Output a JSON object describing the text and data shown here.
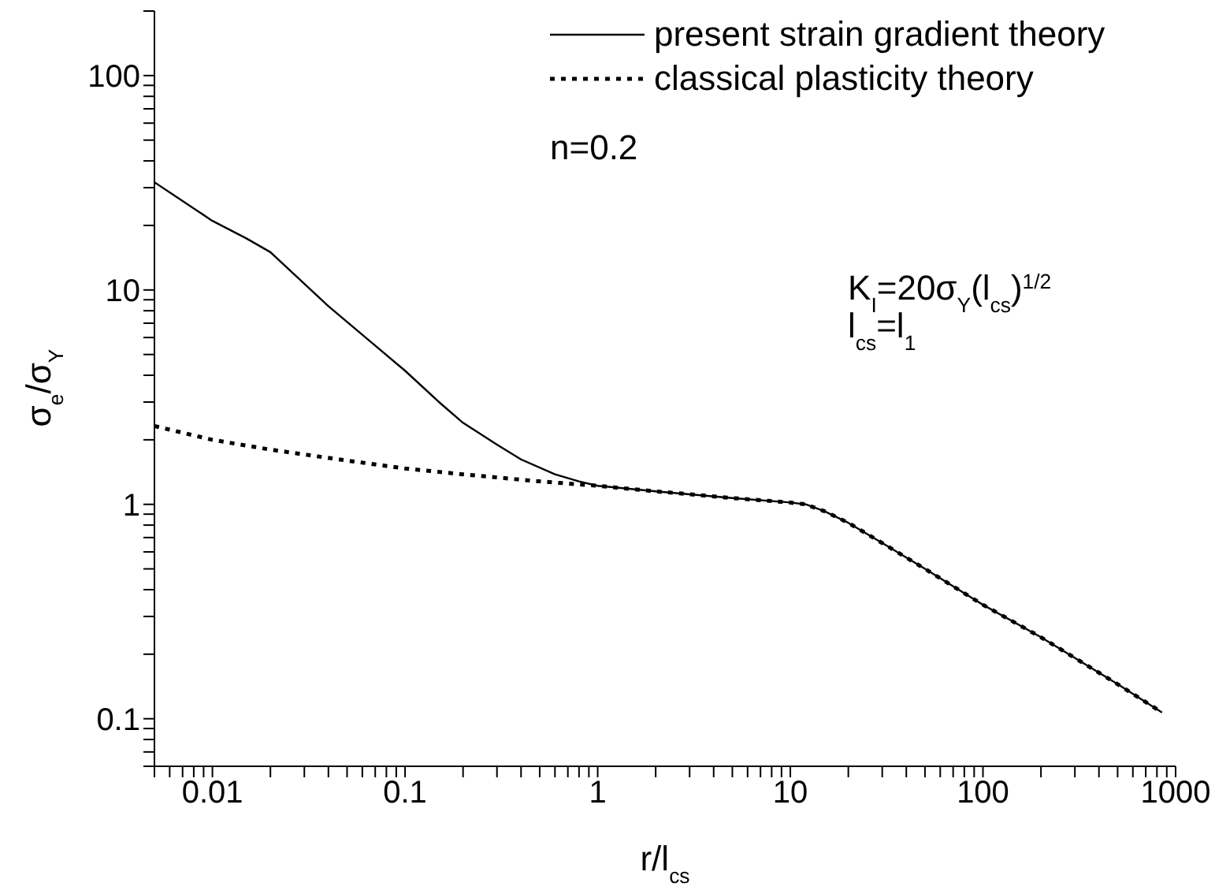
{
  "chart_data": {
    "type": "line",
    "xlabel": "r/l$_{cs}$",
    "ylabel": "σ$_{e}$/σ$_{Y}$",
    "log": "xy",
    "xlim": [
      0.005,
      1000
    ],
    "ylim": [
      0.06,
      200
    ],
    "xticks": [
      {
        "value": 0.005,
        "label": null
      },
      {
        "value": 0.006,
        "label": null
      },
      {
        "value": 0.007,
        "label": null
      },
      {
        "value": 0.008,
        "label": null
      },
      {
        "value": 0.009,
        "label": null
      },
      0.01,
      {
        "value": 0.02,
        "label": null
      },
      {
        "value": 0.03,
        "label": null
      },
      {
        "value": 0.04,
        "label": null
      },
      {
        "value": 0.05,
        "label": null
      },
      {
        "value": 0.06,
        "label": null
      },
      {
        "value": 0.07,
        "label": null
      },
      {
        "value": 0.08,
        "label": null
      },
      {
        "value": 0.09,
        "label": null
      },
      0.1,
      {
        "value": 0.2,
        "label": null
      },
      {
        "value": 0.3,
        "label": null
      },
      {
        "value": 0.4,
        "label": null
      },
      {
        "value": 0.5,
        "label": null
      },
      {
        "value": 0.6,
        "label": null
      },
      {
        "value": 0.7,
        "label": null
      },
      {
        "value": 0.8,
        "label": null
      },
      {
        "value": 0.9,
        "label": null
      },
      1,
      {
        "value": 2,
        "label": null
      },
      {
        "value": 3,
        "label": null
      },
      {
        "value": 4,
        "label": null
      },
      {
        "value": 5,
        "label": null
      },
      {
        "value": 6,
        "label": null
      },
      {
        "value": 7,
        "label": null
      },
      {
        "value": 8,
        "label": null
      },
      {
        "value": 9,
        "label": null
      },
      10,
      {
        "value": 20,
        "label": null
      },
      {
        "value": 30,
        "label": null
      },
      {
        "value": 40,
        "label": null
      },
      {
        "value": 50,
        "label": null
      },
      {
        "value": 60,
        "label": null
      },
      {
        "value": 70,
        "label": null
      },
      {
        "value": 80,
        "label": null
      },
      {
        "value": 90,
        "label": null
      },
      100,
      {
        "value": 200,
        "label": null
      },
      {
        "value": 300,
        "label": null
      },
      {
        "value": 400,
        "label": null
      },
      {
        "value": 500,
        "label": null
      },
      {
        "value": 600,
        "label": null
      },
      {
        "value": 700,
        "label": null
      },
      {
        "value": 800,
        "label": null
      },
      {
        "value": 900,
        "label": null
      },
      1000
    ],
    "yticks": [
      {
        "value": 0.06,
        "label": null
      },
      {
        "value": 0.07,
        "label": null
      },
      {
        "value": 0.08,
        "label": null
      },
      {
        "value": 0.09,
        "label": null
      },
      0.1,
      {
        "value": 0.2,
        "label": null
      },
      {
        "value": 0.3,
        "label": null
      },
      {
        "value": 0.4,
        "label": null
      },
      {
        "value": 0.5,
        "label": null
      },
      {
        "value": 0.6,
        "label": null
      },
      {
        "value": 0.7,
        "label": null
      },
      {
        "value": 0.8,
        "label": null
      },
      {
        "value": 0.9,
        "label": null
      },
      1,
      {
        "value": 2,
        "label": null
      },
      {
        "value": 3,
        "label": null
      },
      {
        "value": 4,
        "label": null
      },
      {
        "value": 5,
        "label": null
      },
      {
        "value": 6,
        "label": null
      },
      {
        "value": 7,
        "label": null
      },
      {
        "value": 8,
        "label": null
      },
      {
        "value": 9,
        "label": null
      },
      10,
      {
        "value": 20,
        "label": null
      },
      {
        "value": 30,
        "label": null
      },
      {
        "value": 40,
        "label": null
      },
      {
        "value": 50,
        "label": null
      },
      {
        "value": 60,
        "label": null
      },
      {
        "value": 70,
        "label": null
      },
      {
        "value": 80,
        "label": null
      },
      {
        "value": 90,
        "label": null
      },
      100,
      {
        "value": 200,
        "label": null
      }
    ],
    "grid": false,
    "legend": "top right",
    "marker": "none",
    "series": [
      {
        "name": "present strain gradient theory",
        "color": "#000000",
        "line_style": "solid",
        "x": [
          0.005,
          0.01,
          0.015,
          0.02,
          0.04,
          0.07,
          0.1,
          0.15,
          0.2,
          0.3,
          0.4,
          0.6,
          0.8,
          1,
          2,
          5,
          10,
          12,
          15,
          20,
          30,
          50,
          100,
          200,
          500,
          850
        ],
        "values": [
          31.8,
          21,
          17.4,
          15,
          8.4,
          5.5,
          4.2,
          3.0,
          2.4,
          1.9,
          1.62,
          1.38,
          1.28,
          1.22,
          1.15,
          1.07,
          1.02,
          1.0,
          0.93,
          0.82,
          0.66,
          0.5,
          0.34,
          0.24,
          0.145,
          0.107
        ]
      },
      {
        "name": "classical plasticity theory",
        "color": "#000000",
        "line_style": "dotted",
        "x": [
          0.005,
          0.01,
          0.02,
          0.05,
          0.1,
          0.2,
          0.5,
          1,
          2,
          5,
          10,
          12,
          15,
          20,
          30,
          50,
          100,
          200,
          500,
          850
        ],
        "values": [
          2.32,
          2.0,
          1.8,
          1.6,
          1.47,
          1.38,
          1.28,
          1.22,
          1.15,
          1.07,
          1.02,
          1.0,
          0.93,
          0.82,
          0.66,
          0.5,
          0.34,
          0.24,
          0.145,
          0.107
        ]
      }
    ],
    "annotations": [
      "n=0.2",
      "K$_{I}$=20σ$_{Y}$(l$_{cs}$)$^{1/2}$",
      "l$_{cs}$=l$_{1}$"
    ]
  }
}
